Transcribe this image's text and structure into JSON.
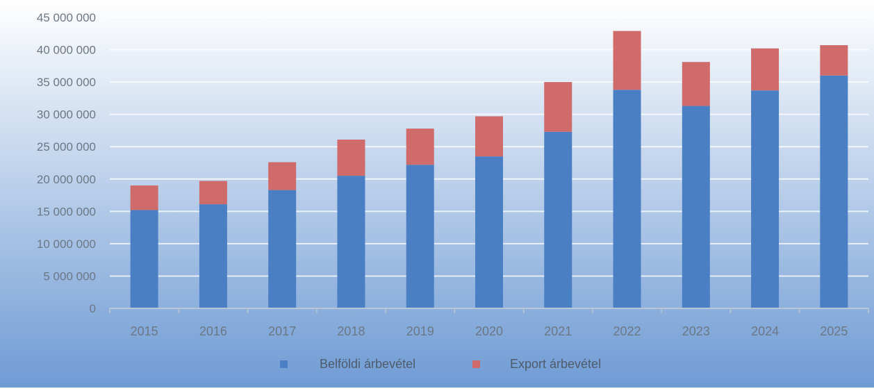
{
  "chart_data": {
    "type": "bar",
    "stacked": true,
    "categories": [
      "2015",
      "2016",
      "2017",
      "2018",
      "2019",
      "2020",
      "2021",
      "2022",
      "2023",
      "2024",
      "2025"
    ],
    "series": [
      {
        "name": "Belföldi árbevétel",
        "color": "#4a7fc4",
        "values": [
          15200000,
          16100000,
          18300000,
          20500000,
          22200000,
          23500000,
          27300000,
          33800000,
          31300000,
          33700000,
          36000000
        ]
      },
      {
        "name": "Export árbevétel",
        "color": "#cf6b6b",
        "values": [
          3800000,
          3600000,
          4300000,
          5600000,
          5600000,
          6200000,
          7700000,
          9100000,
          6800000,
          6500000,
          4700000
        ]
      }
    ],
    "y_ticks": [
      "0",
      "5 000 000",
      "10 000 000",
      "15 000 000",
      "20 000 000",
      "25 000 000",
      "30 000 000",
      "35 000 000",
      "40 000 000",
      "45 000 000"
    ],
    "ylim": [
      0,
      45000000
    ],
    "grid": true,
    "legend_position": "bottom",
    "background_colors": [
      "#ffffff",
      "#6f9bd4"
    ]
  }
}
